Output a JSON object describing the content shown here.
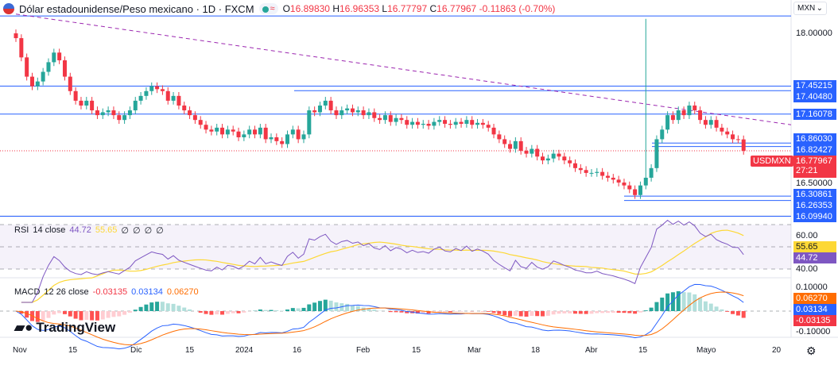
{
  "header": {
    "title": "Dólar estadounidense/Peso mexicano · 1D · FXCM",
    "o_label": "O",
    "o": "16.89830",
    "h_label": "H",
    "h": "16.96353",
    "l_label": "L",
    "l": "16.77797",
    "c_label": "C",
    "c": "16.77967",
    "change": "-0.11863 (-0.70%)",
    "market_icon": "dot-green",
    "wave_icon": "≈"
  },
  "currency_select": {
    "value": "MXN"
  },
  "symbol_tag": "USDMXN",
  "countdown": "27:21",
  "colors": {
    "up": "#26a69a",
    "down": "#f23645",
    "level_line": "#2962ff",
    "trendline": "#9c27b0",
    "rsi": "#7e57c2",
    "rsi_ma": "#fdd835",
    "macd": "#2962ff",
    "signal": "#ff6d00"
  },
  "price_axis": {
    "ticks": [
      "18.00000",
      "16.50000"
    ],
    "levels": [
      "17.45215",
      "17.40480",
      "17.16078",
      "16.86030",
      "16.82427",
      "16.30861",
      "16.26353",
      "16.09940"
    ],
    "last": "16.77967"
  },
  "rsi": {
    "label": "RSI",
    "params": "14 close",
    "value": "44.72",
    "ma_value": "55.65",
    "extra": [
      "∅",
      "∅",
      "∅",
      "∅"
    ],
    "ticks": [
      "60.00",
      "40.00"
    ]
  },
  "macd": {
    "label": "MACD",
    "params": "12 26 close",
    "hist": "-0.03135",
    "macd": "0.03134",
    "signal": "0.06270",
    "ticks": [
      "0.10000",
      "-0.10000"
    ]
  },
  "time_axis": [
    "Nov",
    "15",
    "Dic",
    "15",
    "2024",
    "16",
    "Feb",
    "15",
    "Mar",
    "18",
    "Abr",
    "15",
    "Mayo",
    "20"
  ],
  "logo": "TradingView",
  "chart_data": {
    "type": "candlestick",
    "symbol": "USDMXN",
    "interval": "1D",
    "ylim": [
      16.0,
      18.2
    ],
    "close": [
      17.95,
      17.75,
      17.55,
      17.45,
      17.5,
      17.6,
      17.7,
      17.8,
      17.72,
      17.55,
      17.4,
      17.3,
      17.25,
      17.3,
      17.2,
      17.15,
      17.18,
      17.2,
      17.15,
      17.1,
      17.15,
      17.2,
      17.3,
      17.35,
      17.4,
      17.45,
      17.42,
      17.4,
      17.3,
      17.35,
      17.25,
      17.2,
      17.15,
      17.1,
      17.05,
      17.0,
      16.98,
      17.02,
      16.95,
      17.0,
      16.98,
      16.92,
      16.95,
      17.0,
      16.95,
      17.02,
      16.9,
      16.92,
      16.88,
      16.85,
      16.95,
      17.0,
      16.9,
      16.95,
      17.2,
      17.18,
      17.25,
      17.3,
      17.2,
      17.15,
      17.2,
      17.22,
      17.18,
      17.2,
      17.15,
      17.18,
      17.12,
      17.1,
      17.15,
      17.08,
      17.12,
      17.1,
      17.05,
      17.08,
      17.05,
      17.06,
      17.04,
      17.08,
      17.1,
      17.06,
      17.05,
      17.08,
      17.06,
      17.1,
      17.05,
      17.07,
      17.05,
      17.02,
      16.95,
      16.9,
      16.85,
      16.8,
      16.88,
      16.78,
      16.75,
      16.8,
      16.72,
      16.68,
      16.7,
      16.75,
      16.72,
      16.68,
      16.65,
      16.6,
      16.58,
      16.55,
      16.55,
      16.56,
      16.52,
      16.5,
      16.48,
      16.45,
      16.42,
      16.38,
      16.32,
      16.42,
      16.5,
      16.6,
      16.9,
      17.0,
      17.15,
      17.1,
      17.2,
      17.15,
      17.25,
      17.2,
      17.1,
      17.05,
      17.1,
      17.02,
      16.98,
      16.95,
      16.9,
      16.8983,
      16.77967
    ],
    "spike": {
      "index": 116,
      "high": 18.15
    },
    "trendline": [
      18.2,
      17.05
    ],
    "top_line": 18.18
  }
}
